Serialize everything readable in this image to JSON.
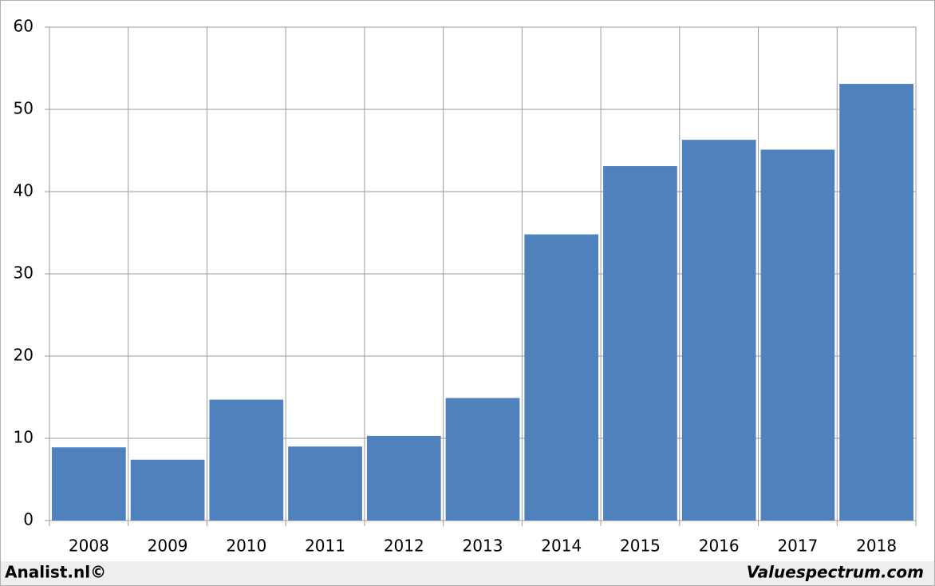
{
  "chart_data": {
    "type": "bar",
    "categories": [
      "2008",
      "2009",
      "2010",
      "2011",
      "2012",
      "2013",
      "2014",
      "2015",
      "2016",
      "2017",
      "2018"
    ],
    "values": [
      8.9,
      7.4,
      14.7,
      9.0,
      10.3,
      14.9,
      34.8,
      43.1,
      46.3,
      45.1,
      53.1
    ],
    "color": "#4f81bd",
    "ylim": [
      0,
      60
    ],
    "yticks": [
      0,
      10,
      20,
      30,
      40,
      50,
      60
    ],
    "grid": true,
    "annotations": [
      "Analist.nl©",
      "Valuespectrum.com"
    ]
  }
}
